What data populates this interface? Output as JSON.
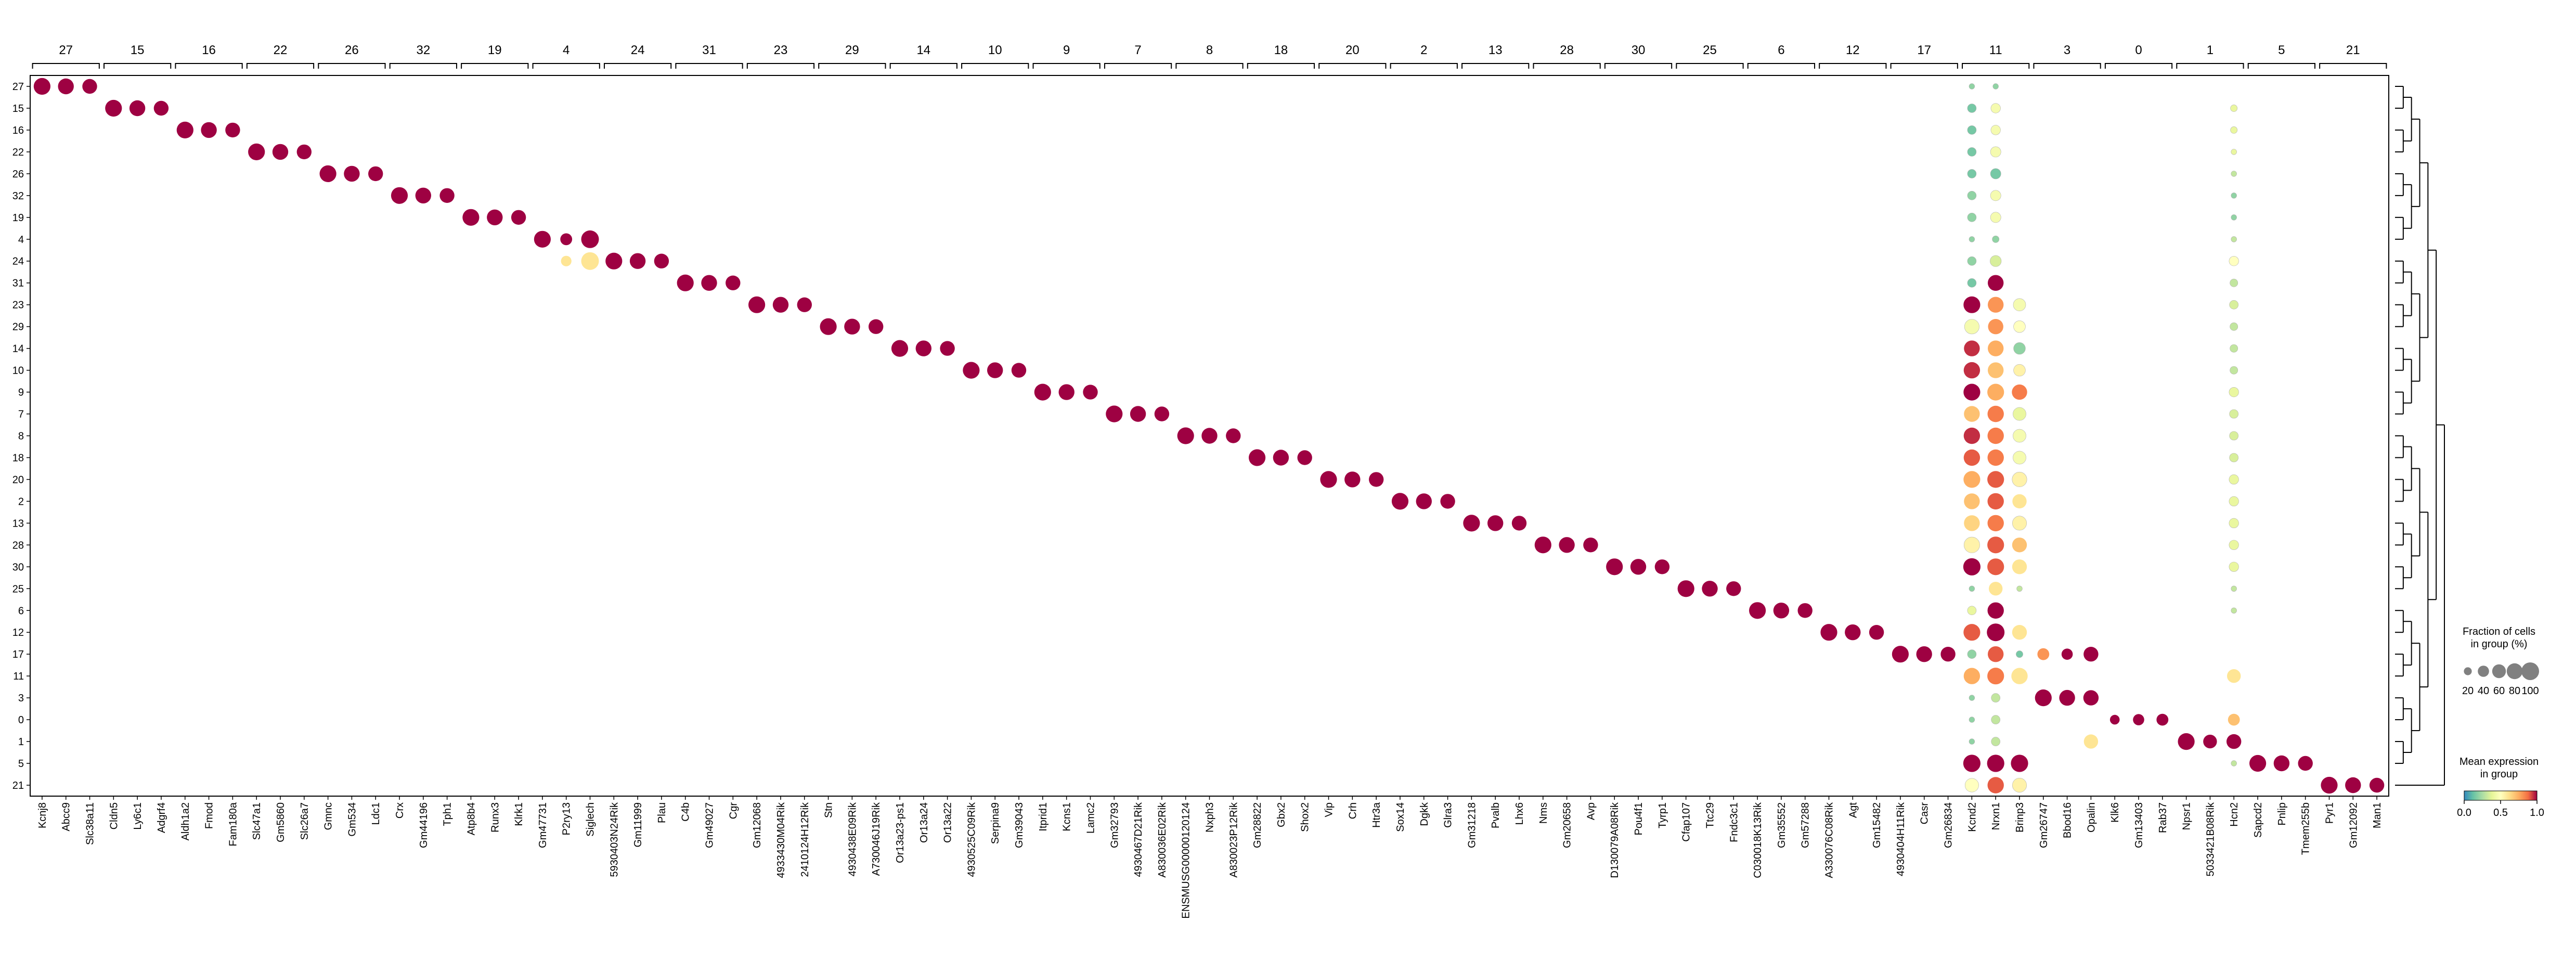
{
  "chart_data": {
    "type": "dotplot",
    "title": "",
    "xlabel": "",
    "ylabel": "",
    "cluster_order": [
      "27",
      "15",
      "16",
      "22",
      "26",
      "32",
      "19",
      "4",
      "24",
      "31",
      "23",
      "29",
      "14",
      "10",
      "9",
      "7",
      "8",
      "18",
      "20",
      "2",
      "13",
      "28",
      "30",
      "25",
      "6",
      "12",
      "17",
      "11",
      "3",
      "0",
      "1",
      "5",
      "21"
    ],
    "gene_groups": [
      {
        "cluster": "27",
        "genes": [
          "Kcnj8",
          "Abcc9",
          "Slc38a11"
        ]
      },
      {
        "cluster": "15",
        "genes": [
          "Cldn5",
          "Ly6c1",
          "Adgrf4"
        ]
      },
      {
        "cluster": "16",
        "genes": [
          "Aldh1a2",
          "Fmod",
          "Fam180a"
        ]
      },
      {
        "cluster": "22",
        "genes": [
          "Slc47a1",
          "Gm5860",
          "Slc26a7"
        ]
      },
      {
        "cluster": "26",
        "genes": [
          "Gmnc",
          "Gm534",
          "Ldc1"
        ]
      },
      {
        "cluster": "32",
        "genes": [
          "Crx",
          "Gm44196",
          "Tph1"
        ]
      },
      {
        "cluster": "19",
        "genes": [
          "Atp8b4",
          "Runx3",
          "Klrk1"
        ]
      },
      {
        "cluster": "4",
        "genes": [
          "Gm47731",
          "P2ry13",
          "Siglech"
        ]
      },
      {
        "cluster": "24",
        "genes": [
          "5930403N24Rik",
          "Gm11999",
          "Plau"
        ]
      },
      {
        "cluster": "31",
        "genes": [
          "C4b",
          "Gm49027",
          "Cgr"
        ]
      },
      {
        "cluster": "23",
        "genes": [
          "Gm12068",
          "4933430M04Rik",
          "2410124H12Rik"
        ]
      },
      {
        "cluster": "29",
        "genes": [
          "Stn",
          "4930438E09Rik",
          "A730046J19Rik"
        ]
      },
      {
        "cluster": "14",
        "genes": [
          "Or13a23-ps1",
          "Or13a24",
          "Or13a22"
        ]
      },
      {
        "cluster": "10",
        "genes": [
          "4930525C09Rik",
          "Serpina9",
          "Gm39043"
        ]
      },
      {
        "cluster": "9",
        "genes": [
          "Itprid1",
          "Kcns1",
          "Lamc2"
        ]
      },
      {
        "cluster": "7",
        "genes": [
          "Gm32793",
          "4930467D21Rik",
          "A830036E02Rik"
        ]
      },
      {
        "cluster": "8",
        "genes": [
          "ENSMUSG00000120124",
          "Nxph3",
          "A830023P12Rik"
        ]
      },
      {
        "cluster": "18",
        "genes": [
          "Gm28822",
          "Gbx2",
          "Shox2"
        ]
      },
      {
        "cluster": "20",
        "genes": [
          "Vip",
          "Crh",
          "Htr3a"
        ]
      },
      {
        "cluster": "2",
        "genes": [
          "Sox14",
          "Dgkk",
          "Glra3"
        ]
      },
      {
        "cluster": "13",
        "genes": [
          "Gm31218",
          "Pvalb",
          "Lhx6"
        ]
      },
      {
        "cluster": "28",
        "genes": [
          "Nms",
          "Gm20658",
          "Avp"
        ]
      },
      {
        "cluster": "30",
        "genes": [
          "D130079A08Rik",
          "Pou4f1",
          "Tyrp1"
        ]
      },
      {
        "cluster": "25",
        "genes": [
          "Cfap107",
          "Ttc29",
          "Fndc3c1"
        ]
      },
      {
        "cluster": "6",
        "genes": [
          "C030018K13Rik",
          "Gm35552",
          "Gm57288"
        ]
      },
      {
        "cluster": "12",
        "genes": [
          "A330076C08Rik",
          "Agt",
          "Gm15482"
        ]
      },
      {
        "cluster": "17",
        "genes": [
          "4930404H11Rik",
          "Casr",
          "Gm26834"
        ]
      },
      {
        "cluster": "11",
        "genes": [
          "Kcnd2",
          "Nrxn1",
          "Brinp3"
        ]
      },
      {
        "cluster": "3",
        "genes": [
          "Gm26747",
          "Bbod16",
          "Opalin"
        ]
      },
      {
        "cluster": "0",
        "genes": [
          "Klk6",
          "Gm13403",
          "Rab37"
        ]
      },
      {
        "cluster": "1",
        "genes": [
          "Npsr1",
          "5033421B08Rik",
          "Hcn2"
        ]
      },
      {
        "cluster": "5",
        "genes": [
          "Sapcd2",
          "Pnlip",
          "Tmem255b"
        ]
      },
      {
        "cluster": "21",
        "genes": [
          "Pyr1",
          "Gm12092",
          "Man1"
        ]
      }
    ],
    "rows": [
      "27",
      "15",
      "16",
      "22",
      "26",
      "32",
      "19",
      "4",
      "24",
      "31",
      "23",
      "29",
      "14",
      "10",
      "9",
      "7",
      "8",
      "18",
      "20",
      "2",
      "13",
      "28",
      "30",
      "25",
      "6",
      "12",
      "17",
      "11",
      "3",
      "0",
      "1",
      "5",
      "21"
    ],
    "marker_fraction": [
      90,
      80,
      70
    ],
    "marker_expression": [
      1.0,
      1.0,
      1.0
    ],
    "special_points": [
      {
        "row": "4",
        "col": "Siglech",
        "fraction": 100,
        "expression": 1.0
      },
      {
        "row": "4",
        "col": "P2ry13",
        "fraction": 45,
        "expression": 1.0
      },
      {
        "row": "24",
        "col": "Siglech",
        "fraction": 100,
        "expression": 0.6
      },
      {
        "row": "24",
        "col": "P2ry13",
        "fraction": 35,
        "expression": 0.6
      },
      {
        "row": "11",
        "col": "Hcn2",
        "fraction": 60,
        "expression": 0.6
      },
      {
        "row": "17",
        "col": "Gm26747",
        "fraction": 45,
        "expression": 0.8
      },
      {
        "row": "17",
        "col": "Bbod16",
        "fraction": 40,
        "expression": 1.0
      },
      {
        "row": "17",
        "col": "Opalin",
        "fraction": 70,
        "expression": 1.0
      },
      {
        "row": "3",
        "col": "Opalin",
        "fraction": 75,
        "expression": 1.0
      },
      {
        "row": "0",
        "col": "Klk6",
        "fraction": 30,
        "expression": 1.0
      },
      {
        "row": "0",
        "col": "Gm13403",
        "fraction": 40,
        "expression": 1.0
      },
      {
        "row": "0",
        "col": "Rab37",
        "fraction": 45,
        "expression": 1.0
      },
      {
        "row": "0",
        "col": "Hcn2",
        "fraction": 45,
        "expression": 0.7
      },
      {
        "row": "1",
        "col": "Opalin",
        "fraction": 65,
        "expression": 0.6
      },
      {
        "row": "1",
        "col": "5033421B08Rik",
        "fraction": 60,
        "expression": 1.0
      }
    ],
    "shared_columns": {
      "columns": [
        "Kcnd2",
        "Nrxn1",
        "Brinp3",
        "Hcn2"
      ],
      "rows": {
        "27": [
          10,
          10,
          0,
          0
        ],
        "15": [
          25,
          30,
          0,
          15
        ],
        "16": [
          25,
          30,
          0,
          15
        ],
        "22": [
          25,
          35,
          0,
          10
        ],
        "26": [
          25,
          35,
          0,
          10
        ],
        "32": [
          25,
          35,
          0,
          10
        ],
        "19": [
          25,
          35,
          0,
          10
        ],
        "4": [
          10,
          15,
          0,
          10
        ],
        "24": [
          25,
          40,
          0,
          30
        ],
        "31": [
          25,
          80,
          0,
          20
        ],
        "23": [
          90,
          80,
          50,
          25
        ],
        "29": [
          70,
          75,
          45,
          20
        ],
        "14": [
          80,
          80,
          45,
          20
        ],
        "10": [
          85,
          80,
          45,
          20
        ],
        "9": [
          90,
          90,
          75,
          30
        ],
        "7": [
          80,
          85,
          55,
          25
        ],
        "8": [
          85,
          85,
          55,
          25
        ],
        "18": [
          85,
          85,
          55,
          25
        ],
        "20": [
          90,
          90,
          70,
          30
        ],
        "2": [
          80,
          85,
          65,
          30
        ],
        "13": [
          80,
          85,
          65,
          30
        ],
        "28": [
          80,
          90,
          70,
          30
        ],
        "30": [
          95,
          90,
          70,
          30
        ],
        "25": [
          10,
          60,
          10,
          10
        ],
        "6": [
          25,
          85,
          0,
          10
        ],
        "12": [
          90,
          100,
          70,
          0
        ],
        "17": [
          25,
          80,
          15,
          0
        ],
        "11": [
          85,
          90,
          85,
          25
        ],
        "3": [
          10,
          25,
          0,
          0
        ],
        "0": [
          10,
          25,
          0,
          0
        ],
        "1": [
          10,
          25,
          0,
          0
        ],
        "5": [
          95,
          95,
          95,
          10
        ],
        "21": [
          60,
          85,
          65,
          0
        ]
      },
      "expression": {
        "27": [
          0.2,
          0.2,
          0,
          0
        ],
        "15": [
          0.15,
          0.45,
          0,
          0.4
        ],
        "16": [
          0.15,
          0.45,
          0,
          0.4
        ],
        "22": [
          0.15,
          0.45,
          0,
          0.4
        ],
        "26": [
          0.15,
          0.15,
          0,
          0.3
        ],
        "32": [
          0.2,
          0.45,
          0,
          0.2
        ],
        "19": [
          0.2,
          0.45,
          0,
          0.2
        ],
        "4": [
          0.2,
          0.2,
          0,
          0.3
        ],
        "24": [
          0.2,
          0.35,
          0,
          0.5
        ],
        "31": [
          0.15,
          1.0,
          0,
          0.3
        ],
        "23": [
          1.0,
          0.8,
          0.45,
          0.35
        ],
        "29": [
          0.45,
          0.8,
          0.5,
          0.3
        ],
        "14": [
          0.95,
          0.75,
          0.2,
          0.3
        ],
        "10": [
          0.95,
          0.7,
          0.55,
          0.3
        ],
        "9": [
          1.0,
          0.75,
          0.85,
          0.4
        ],
        "7": [
          0.7,
          0.85,
          0.4,
          0.35
        ],
        "8": [
          0.95,
          0.85,
          0.45,
          0.35
        ],
        "18": [
          0.9,
          0.85,
          0.45,
          0.35
        ],
        "20": [
          0.75,
          0.9,
          0.55,
          0.4
        ],
        "2": [
          0.7,
          0.9,
          0.6,
          0.4
        ],
        "13": [
          0.65,
          0.85,
          0.55,
          0.4
        ],
        "28": [
          0.55,
          0.9,
          0.7,
          0.4
        ],
        "30": [
          1.0,
          0.9,
          0.6,
          0.4
        ],
        "25": [
          0.2,
          0.6,
          0.3,
          0.3
        ],
        "6": [
          0.4,
          1.0,
          0,
          0.3
        ],
        "12": [
          0.9,
          1.0,
          0.6,
          0
        ],
        "17": [
          0.2,
          0.9,
          0.15,
          0
        ],
        "11": [
          0.75,
          0.85,
          0.6,
          0.5
        ],
        "3": [
          0.2,
          0.3,
          0,
          0
        ],
        "0": [
          0.2,
          0.3,
          0,
          0
        ],
        "1": [
          0.2,
          0.3,
          0,
          0
        ],
        "5": [
          1.0,
          1.0,
          1.0,
          0.3
        ],
        "21": [
          0.5,
          0.9,
          0.55,
          0
        ]
      }
    },
    "legend_size": {
      "title": "Fraction of cells\nin group (%)",
      "labels": [
        "20",
        "40",
        "60",
        "80",
        "100"
      ],
      "values": [
        20,
        40,
        60,
        80,
        100
      ]
    },
    "legend_color": {
      "title": "Mean expression\nin group",
      "ticks": [
        0.0,
        0.5,
        1.0
      ],
      "tick_labels": [
        "0.0",
        "0.5",
        "1.0"
      ],
      "colormap": "Spectral_r"
    },
    "dendrogram": "right",
    "grid": false
  }
}
